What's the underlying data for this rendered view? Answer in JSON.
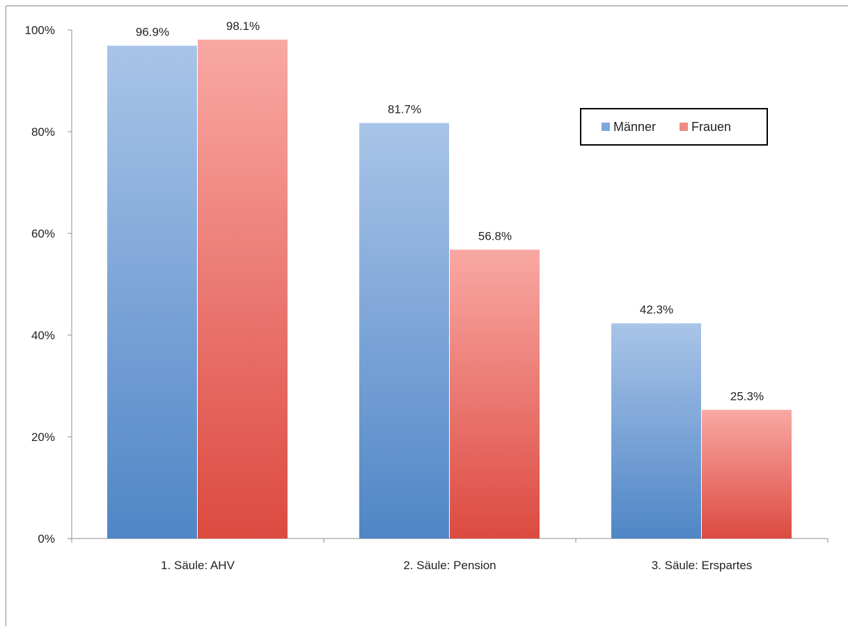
{
  "chart_data": {
    "type": "bar",
    "categories": [
      "1. Säule: AHV",
      "2. Säule: Pension",
      "3. Säule: Erspartes"
    ],
    "series": [
      {
        "name": "Männer",
        "values": [
          96.9,
          81.7,
          42.3
        ],
        "labels": [
          "96.9%",
          "81.7%",
          "42.3%"
        ],
        "color": "#7ea6da"
      },
      {
        "name": "Frauen",
        "values": [
          98.1,
          56.8,
          25.3
        ],
        "labels": [
          "98.1%",
          "56.8%",
          "25.3%"
        ],
        "color": "#f08a86"
      }
    ],
    "yticks": [
      "0%",
      "20%",
      "40%",
      "60%",
      "80%",
      "100%"
    ],
    "ylim": [
      0,
      100
    ],
    "title": "",
    "xlabel": "",
    "ylabel": "",
    "grid": false,
    "legend_position": "top-right"
  }
}
